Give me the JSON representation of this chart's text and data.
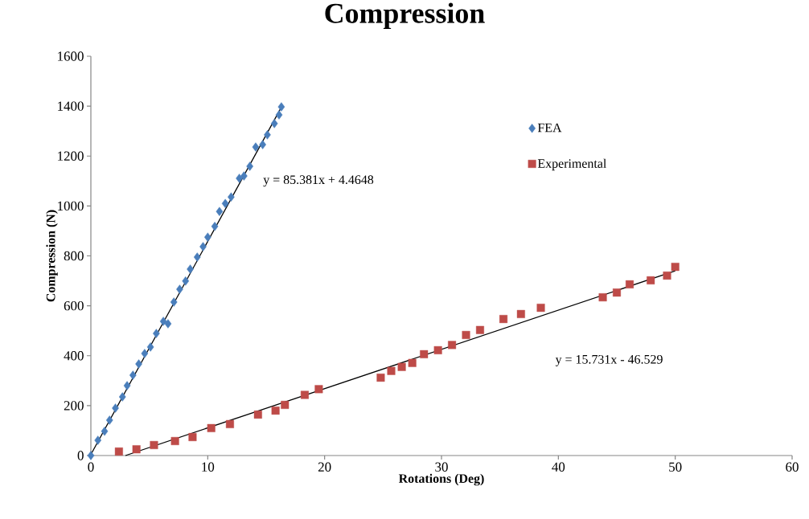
{
  "chart_data": {
    "type": "scatter",
    "title": "Compression",
    "xlabel": "Rotations (Deg)",
    "ylabel": "Compression (N)",
    "xlim": [
      0,
      60
    ],
    "xticks": [
      0,
      10,
      20,
      30,
      40,
      50,
      60
    ],
    "ylim": [
      0,
      1600
    ],
    "yticks": [
      0,
      200,
      400,
      600,
      800,
      1000,
      1200,
      1400,
      1600
    ],
    "grid": false,
    "legend": "right",
    "annotations": [
      "y = 85.381x + 4.4648",
      "y = 15.731x - 46.529"
    ],
    "series": [
      {
        "name": "FEA",
        "marker": "diamond",
        "color": "#4a7ebb",
        "x": [
          0,
          0.6,
          1.17,
          1.6,
          2.1,
          2.7,
          3.1,
          3.6,
          4.1,
          4.6,
          5.1,
          5.6,
          6.2,
          6.6,
          7.1,
          7.6,
          8.1,
          8.5,
          9.1,
          9.6,
          10.0,
          10.6,
          11.0,
          11.5,
          12.0,
          12.7,
          13.1,
          13.6,
          14.1,
          14.7,
          15.1,
          15.7,
          16.1,
          16.3
        ],
        "values": [
          0,
          61,
          97,
          142,
          190,
          235,
          280,
          322,
          367,
          409,
          435,
          489,
          538,
          528,
          615,
          666,
          699,
          747,
          795,
          837,
          875,
          918,
          978,
          1010,
          1036,
          1111,
          1120,
          1159,
          1236,
          1246,
          1285,
          1330,
          1365,
          1397
        ]
      },
      {
        "name": "Experimental",
        "marker": "square",
        "color": "#be4b48",
        "x": [
          2.4,
          3.9,
          5.4,
          7.2,
          8.7,
          10.3,
          11.9,
          14.3,
          15.8,
          16.6,
          18.3,
          19.5,
          24.8,
          25.7,
          26.6,
          27.5,
          28.5,
          29.7,
          30.9,
          32.1,
          33.3,
          35.3,
          36.8,
          38.5,
          43.8,
          45.0,
          46.1,
          47.9,
          49.3,
          50.0
        ],
        "values": [
          16,
          25,
          42,
          58,
          74,
          110,
          126,
          164,
          180,
          203,
          243,
          266,
          312,
          339,
          355,
          371,
          406,
          422,
          443,
          483,
          503,
          547,
          567,
          592,
          634,
          653,
          686,
          702,
          721,
          756
        ]
      },
      {
        "type": "line",
        "marker": "none",
        "color": "#000000",
        "x": [
          0,
          16.3
        ],
        "values": [
          4,
          1396
        ]
      },
      {
        "type": "line",
        "marker": "none",
        "color": "#000000",
        "x": [
          2.96,
          50
        ],
        "values": [
          0,
          740
        ]
      }
    ]
  }
}
